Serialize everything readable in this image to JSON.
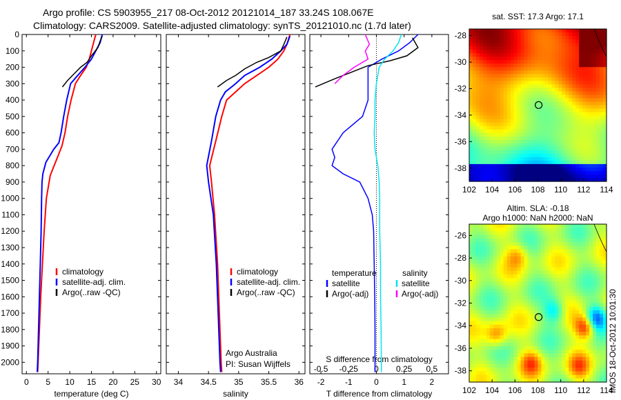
{
  "title_line1": "Argo profile: CS 5903955_217 08-Oct-2012 20121014_187 33.24S 108.067E",
  "title_line2": "Climatology: CARS2009. Satellite-adjusted climatology: synTS_20121010.nc (1.7d later)",
  "footer_stamp": "IMOS 18-Oct-2012 10:01:30",
  "colors": {
    "climatology": "#ff0000",
    "satellite": "#0000ff",
    "argo": "#000000",
    "sat_salinity": "#00e5ee",
    "argo_salinity": "#ff00ff"
  },
  "depth_ticks": [
    0,
    100,
    200,
    300,
    400,
    500,
    600,
    700,
    800,
    900,
    1000,
    1100,
    1200,
    1300,
    1400,
    1500,
    1600,
    1700,
    1800,
    1900,
    2000
  ],
  "chart_data": [
    {
      "type": "line",
      "xlabel": "temperature (deg C)",
      "xlim": [
        -1,
        31
      ],
      "ylim": [
        2070,
        0
      ],
      "xticks": [
        0,
        5,
        10,
        15,
        20,
        25,
        30
      ],
      "legend": [
        "climatology",
        "satellite-adj. clim.",
        "Argo(..raw -QC)"
      ],
      "series": [
        {
          "name": "climatology",
          "color": "#ff0000",
          "points": [
            [
              16,
              0
            ],
            [
              15.5,
              50
            ],
            [
              15,
              100
            ],
            [
              14.5,
              150
            ],
            [
              13.8,
              200
            ],
            [
              12.5,
              250
            ],
            [
              11.3,
              300
            ],
            [
              10.3,
              400
            ],
            [
              9.5,
              500
            ],
            [
              8.9,
              600
            ],
            [
              8.2,
              680
            ],
            [
              7,
              760
            ],
            [
              5.5,
              860
            ],
            [
              4.6,
              1000
            ],
            [
              4.1,
              1200
            ],
            [
              3.7,
              1400
            ],
            [
              3.3,
              1600
            ],
            [
              3.0,
              1800
            ],
            [
              2.7,
              2000
            ],
            [
              2.6,
              2060
            ]
          ]
        },
        {
          "name": "satellite-adj. clim.",
          "color": "#0000ff",
          "points": [
            [
              17.5,
              0
            ],
            [
              17,
              50
            ],
            [
              16,
              100
            ],
            [
              15,
              150
            ],
            [
              13.5,
              200
            ],
            [
              11.5,
              260
            ],
            [
              10.2,
              300
            ],
            [
              9.3,
              400
            ],
            [
              8.6,
              500
            ],
            [
              8,
              600
            ],
            [
              7.5,
              660
            ],
            [
              6.3,
              700
            ],
            [
              4.5,
              780
            ],
            [
              3.8,
              850
            ],
            [
              3.6,
              900
            ],
            [
              3.5,
              1000
            ],
            [
              3.4,
              1200
            ],
            [
              3.2,
              1400
            ],
            [
              3.0,
              1600
            ],
            [
              2.8,
              1800
            ],
            [
              2.6,
              2000
            ],
            [
              2.5,
              2060
            ]
          ]
        },
        {
          "name": "Argo(..raw -QC)",
          "color": "#000000",
          "points": [
            [
              17.5,
              10
            ],
            [
              17,
              40
            ],
            [
              16.5,
              80
            ],
            [
              15,
              130
            ],
            [
              14,
              170
            ],
            [
              12.5,
              200
            ],
            [
              11,
              240
            ],
            [
              9.5,
              280
            ],
            [
              8.3,
              320
            ]
          ]
        }
      ]
    },
    {
      "type": "line",
      "xlabel": "salinity",
      "xlim": [
        33.8,
        36.1
      ],
      "ylim": [
        2070,
        0
      ],
      "xticks": [
        34,
        34.5,
        35,
        35.5,
        36
      ],
      "legend": [
        "climatology",
        "satellite-adj. clim.",
        "Argo(..raw -QC)"
      ],
      "annotations": [
        "Argo Australia",
        "PI: Susan Wijffels"
      ],
      "series": [
        {
          "name": "climatology",
          "color": "#ff0000",
          "points": [
            [
              35.85,
              0
            ],
            [
              35.8,
              60
            ],
            [
              35.75,
              100
            ],
            [
              35.65,
              150
            ],
            [
              35.5,
              200
            ],
            [
              35.3,
              250
            ],
            [
              35.1,
              300
            ],
            [
              34.95,
              350
            ],
            [
              34.8,
              400
            ],
            [
              34.72,
              500
            ],
            [
              34.62,
              650
            ],
            [
              34.52,
              800
            ],
            [
              34.55,
              900
            ],
            [
              34.6,
              1100
            ],
            [
              34.65,
              1400
            ],
            [
              34.68,
              1700
            ],
            [
              34.71,
              2000
            ],
            [
              34.72,
              2060
            ]
          ]
        },
        {
          "name": "satellite-adj. clim.",
          "color": "#0000ff",
          "points": [
            [
              35.85,
              10
            ],
            [
              35.8,
              60
            ],
            [
              35.7,
              100
            ],
            [
              35.55,
              150
            ],
            [
              35.35,
              200
            ],
            [
              35.1,
              250
            ],
            [
              34.95,
              300
            ],
            [
              34.78,
              350
            ],
            [
              34.7,
              400
            ],
            [
              34.62,
              500
            ],
            [
              34.55,
              650
            ],
            [
              34.47,
              800
            ],
            [
              34.5,
              900
            ],
            [
              34.58,
              1100
            ],
            [
              34.63,
              1400
            ],
            [
              34.66,
              1700
            ],
            [
              34.69,
              2000
            ],
            [
              34.7,
              2060
            ]
          ]
        },
        {
          "name": "Argo(..raw -QC)",
          "color": "#000000",
          "points": [
            [
              35.8,
              15
            ],
            [
              35.75,
              60
            ],
            [
              35.7,
              100
            ],
            [
              35.5,
              140
            ],
            [
              35.3,
              170
            ],
            [
              35.1,
              210
            ],
            [
              34.95,
              250
            ],
            [
              34.8,
              280
            ],
            [
              34.65,
              320
            ]
          ]
        }
      ]
    },
    {
      "type": "line",
      "xlabel": "T difference from climatology",
      "top_axis_label": "S difference from climatology",
      "xlim": [
        -2.4,
        2.6
      ],
      "ylim": [
        2070,
        0
      ],
      "xticks": [
        -2,
        -1,
        0,
        1,
        2
      ],
      "top_ticks": [
        "-0.5",
        "-0.25",
        "0",
        "0.25",
        "0.5"
      ],
      "legend_titles": [
        "temperature",
        "salinity"
      ],
      "legend": [
        "satellite",
        "Argo(-adj)",
        "satellite",
        "Argo(-adj)"
      ],
      "series": [
        {
          "name": "satellite",
          "color": "#0000ff",
          "points": [
            [
              1.5,
              0
            ],
            [
              1.2,
              50
            ],
            [
              0.8,
              100
            ],
            [
              0.2,
              150
            ],
            [
              -0.3,
              200
            ],
            [
              -0.3,
              300
            ],
            [
              -0.3,
              400
            ],
            [
              -0.5,
              500
            ],
            [
              -1.2,
              600
            ],
            [
              -1.6,
              700
            ],
            [
              -1.5,
              750
            ],
            [
              -1.6,
              800
            ],
            [
              -1.2,
              850
            ],
            [
              -0.6,
              900
            ],
            [
              -0.3,
              1000
            ],
            [
              -0.15,
              1100
            ],
            [
              -0.1,
              1200
            ],
            [
              -0.08,
              1400
            ],
            [
              -0.06,
              1600
            ],
            [
              -0.05,
              1800
            ],
            [
              -0.05,
              2000
            ],
            [
              -0.05,
              2060
            ]
          ]
        },
        {
          "name": "Argo(-adj)",
          "color": "#000000",
          "points": [
            [
              1.3,
              20
            ],
            [
              1.5,
              80
            ],
            [
              1.1,
              130
            ],
            [
              0.5,
              160
            ],
            [
              -0.3,
              190
            ],
            [
              -0.9,
              230
            ],
            [
              -1.5,
              270
            ],
            [
              -2.2,
              320
            ]
          ]
        },
        {
          "name": "satellite",
          "color": "#00e5ee",
          "points": [
            [
              0.9,
              0
            ],
            [
              0.8,
              50
            ],
            [
              0.6,
              100
            ],
            [
              0.3,
              150
            ],
            [
              0.1,
              200
            ],
            [
              0,
              300
            ],
            [
              -0.05,
              400
            ],
            [
              -0.05,
              500
            ],
            [
              -0.08,
              600
            ],
            [
              -0.05,
              700
            ],
            [
              0.05,
              800
            ],
            [
              0.1,
              900
            ],
            [
              0.12,
              1000
            ],
            [
              0.12,
              1200
            ],
            [
              0.15,
              1400
            ],
            [
              0.15,
              1600
            ],
            [
              0.17,
              1800
            ],
            [
              0.18,
              2000
            ],
            [
              0.18,
              2060
            ]
          ]
        },
        {
          "name": "Argo(-adj)",
          "color": "#ff00ff",
          "points": [
            [
              -0.4,
              0
            ],
            [
              -0.25,
              60
            ],
            [
              -0.4,
              100
            ],
            [
              -0.3,
              150
            ],
            [
              -0.8,
              200
            ],
            [
              -1.2,
              250
            ],
            [
              -1.5,
              300
            ]
          ]
        }
      ]
    }
  ],
  "maps": [
    {
      "title": "sat. SST: 17.3  Argo: 17.1",
      "xticks": [
        102,
        104,
        106,
        108,
        110,
        112,
        114
      ],
      "yticks": [
        -28,
        -30,
        -32,
        -34,
        -36,
        -38
      ],
      "xlim": [
        102,
        114
      ],
      "ylim": [
        -39,
        -27.5
      ],
      "argo_position": [
        108.067,
        -33.24
      ]
    },
    {
      "title_line1": "Altim. SLA: -0.18",
      "title_line2": "Argo h1000: NaN h2000: NaN",
      "xticks": [
        102,
        104,
        106,
        108,
        110,
        112,
        114
      ],
      "yticks": [
        -26,
        -28,
        -30,
        -32,
        -34,
        -36,
        -38
      ],
      "xlim": [
        102,
        114
      ],
      "ylim": [
        -39,
        -25
      ],
      "argo_position": [
        108.067,
        -33.24
      ]
    }
  ]
}
